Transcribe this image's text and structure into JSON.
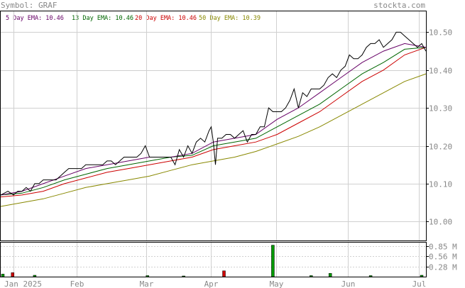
{
  "header": {
    "symbol_text": "Symbol: GRAF",
    "brand": "stockta.com"
  },
  "legend": [
    {
      "label": "5 Day EMA: 10.46",
      "color": "#660066"
    },
    {
      "label": "13 Day EMA: 10.46",
      "color": "#006600"
    },
    {
      "label": "20 Day EMA: 10.46",
      "color": "#cc0000"
    },
    {
      "label": "50 Day EMA: 10.39",
      "color": "#888800"
    }
  ],
  "colors": {
    "price": "#000000",
    "grid": "#d0d0d0",
    "axis_text": "#888888",
    "volume_up": "#009900",
    "volume_down": "#cc0000"
  },
  "chart_data": [
    {
      "type": "line",
      "title": "",
      "ylim": [
        9.95,
        10.555
      ],
      "y_ticks": [
        {
          "value": 10.5,
          "label": "10.50"
        },
        {
          "value": 10.4,
          "label": "10.40"
        },
        {
          "value": 10.3,
          "label": "10.30"
        },
        {
          "value": 10.2,
          "label": "10.20"
        },
        {
          "value": 10.1,
          "label": "10.10"
        },
        {
          "value": 10.0,
          "label": "10.00"
        }
      ],
      "x_ticks": [
        {
          "t": 0.03,
          "label": "Jan 2025"
        },
        {
          "t": 0.178,
          "label": "Feb"
        },
        {
          "t": 0.343,
          "label": "Mar"
        },
        {
          "t": 0.494,
          "label": "Apr"
        },
        {
          "t": 0.648,
          "label": "May"
        },
        {
          "t": 0.817,
          "label": "Jun"
        },
        {
          "t": 0.983,
          "label": "Jul"
        }
      ],
      "series": [
        {
          "name": "Price",
          "key": "price",
          "x": [
            0.0,
            0.017,
            0.03,
            0.04,
            0.05,
            0.06,
            0.07,
            0.08,
            0.09,
            0.1,
            0.11,
            0.12,
            0.13,
            0.14,
            0.15,
            0.16,
            0.17,
            0.18,
            0.19,
            0.2,
            0.21,
            0.22,
            0.23,
            0.24,
            0.25,
            0.26,
            0.27,
            0.28,
            0.29,
            0.3,
            0.31,
            0.32,
            0.33,
            0.34,
            0.35,
            0.36,
            0.37,
            0.38,
            0.39,
            0.4,
            0.41,
            0.42,
            0.43,
            0.44,
            0.45,
            0.46,
            0.47,
            0.48,
            0.49,
            0.495,
            0.5,
            0.505,
            0.51,
            0.52,
            0.53,
            0.54,
            0.55,
            0.56,
            0.57,
            0.58,
            0.59,
            0.6,
            0.61,
            0.62,
            0.63,
            0.64,
            0.65,
            0.66,
            0.67,
            0.68,
            0.69,
            0.7,
            0.71,
            0.72,
            0.73,
            0.74,
            0.75,
            0.76,
            0.77,
            0.78,
            0.79,
            0.8,
            0.81,
            0.82,
            0.83,
            0.84,
            0.85,
            0.86,
            0.87,
            0.88,
            0.89,
            0.9,
            0.91,
            0.92,
            0.93,
            0.94,
            0.95,
            0.96,
            0.97,
            0.98,
            0.99,
            1.0
          ],
          "y": [
            10.07,
            10.08,
            10.07,
            10.08,
            10.08,
            10.09,
            10.08,
            10.1,
            10.1,
            10.11,
            10.11,
            10.11,
            10.11,
            10.12,
            10.13,
            10.14,
            10.14,
            10.14,
            10.14,
            10.15,
            10.15,
            10.15,
            10.15,
            10.15,
            10.16,
            10.16,
            10.15,
            10.16,
            10.17,
            10.17,
            10.17,
            10.17,
            10.18,
            10.2,
            10.17,
            10.17,
            10.17,
            10.17,
            10.17,
            10.17,
            10.15,
            10.19,
            10.17,
            10.2,
            10.18,
            10.21,
            10.22,
            10.21,
            10.24,
            10.25,
            10.21,
            10.15,
            10.22,
            10.22,
            10.23,
            10.23,
            10.22,
            10.23,
            10.24,
            10.21,
            10.23,
            10.23,
            10.25,
            10.25,
            10.3,
            10.29,
            10.29,
            10.29,
            10.3,
            10.32,
            10.35,
            10.3,
            10.34,
            10.33,
            10.35,
            10.35,
            10.35,
            10.36,
            10.38,
            10.39,
            10.38,
            10.4,
            10.41,
            10.44,
            10.43,
            10.43,
            10.44,
            10.46,
            10.47,
            10.47,
            10.48,
            10.46,
            10.47,
            10.48,
            10.5,
            10.5,
            10.49,
            10.48,
            10.47,
            10.46,
            10.47,
            10.45
          ]
        },
        {
          "name": "5 Day EMA",
          "key": "ema5",
          "x": [
            0.0,
            0.05,
            0.1,
            0.15,
            0.2,
            0.25,
            0.3,
            0.35,
            0.4,
            0.45,
            0.5,
            0.55,
            0.6,
            0.65,
            0.7,
            0.75,
            0.8,
            0.85,
            0.9,
            0.95,
            1.0
          ],
          "y": [
            10.07,
            10.08,
            10.1,
            10.12,
            10.14,
            10.15,
            10.16,
            10.17,
            10.17,
            10.18,
            10.21,
            10.22,
            10.23,
            10.27,
            10.3,
            10.34,
            10.38,
            10.42,
            10.45,
            10.47,
            10.46
          ]
        },
        {
          "name": "13 Day EMA",
          "key": "ema13",
          "x": [
            0.0,
            0.05,
            0.1,
            0.15,
            0.2,
            0.25,
            0.3,
            0.35,
            0.4,
            0.45,
            0.5,
            0.55,
            0.6,
            0.65,
            0.7,
            0.75,
            0.8,
            0.85,
            0.9,
            0.95,
            1.0
          ],
          "y": [
            10.07,
            10.075,
            10.09,
            10.11,
            10.125,
            10.14,
            10.15,
            10.16,
            10.17,
            10.175,
            10.2,
            10.21,
            10.22,
            10.25,
            10.28,
            10.31,
            10.35,
            10.39,
            10.42,
            10.455,
            10.46
          ]
        },
        {
          "name": "20 Day EMA",
          "key": "ema20",
          "x": [
            0.0,
            0.05,
            0.1,
            0.15,
            0.2,
            0.25,
            0.3,
            0.35,
            0.4,
            0.45,
            0.5,
            0.55,
            0.6,
            0.65,
            0.7,
            0.75,
            0.8,
            0.85,
            0.9,
            0.95,
            1.0
          ],
          "y": [
            10.065,
            10.07,
            10.08,
            10.1,
            10.115,
            10.13,
            10.14,
            10.15,
            10.16,
            10.17,
            10.19,
            10.2,
            10.21,
            10.23,
            10.26,
            10.29,
            10.33,
            10.37,
            10.4,
            10.44,
            10.46
          ]
        },
        {
          "name": "50 Day EMA",
          "key": "ema50",
          "x": [
            0.0,
            0.05,
            0.1,
            0.15,
            0.2,
            0.25,
            0.3,
            0.35,
            0.4,
            0.45,
            0.5,
            0.55,
            0.6,
            0.65,
            0.7,
            0.75,
            0.8,
            0.85,
            0.9,
            0.95,
            1.0
          ],
          "y": [
            10.04,
            10.05,
            10.06,
            10.075,
            10.09,
            10.1,
            10.11,
            10.12,
            10.135,
            10.15,
            10.16,
            10.17,
            10.185,
            10.205,
            10.225,
            10.25,
            10.28,
            10.31,
            10.34,
            10.37,
            10.39
          ]
        }
      ]
    },
    {
      "type": "bar",
      "title": "",
      "ylim": [
        0,
        0.94
      ],
      "y_ticks": [
        {
          "value": 0.85,
          "label": "0.85 M"
        },
        {
          "value": 0.56,
          "label": "0.56 M"
        },
        {
          "value": 0.28,
          "label": "0.28 M"
        }
      ],
      "bars": [
        {
          "t": 0.005,
          "v": 0.07,
          "up": true
        },
        {
          "t": 0.028,
          "v": 0.11,
          "up": false
        },
        {
          "t": 0.08,
          "v": 0.04,
          "up": true
        },
        {
          "t": 0.345,
          "v": 0.03,
          "up": true
        },
        {
          "t": 0.43,
          "v": 0.02,
          "up": true
        },
        {
          "t": 0.525,
          "v": 0.16,
          "up": false
        },
        {
          "t": 0.64,
          "v": 0.87,
          "up": true
        },
        {
          "t": 0.73,
          "v": 0.03,
          "up": true
        },
        {
          "t": 0.775,
          "v": 0.09,
          "up": true
        },
        {
          "t": 0.87,
          "v": 0.03,
          "up": true
        },
        {
          "t": 0.99,
          "v": 0.04,
          "up": true
        }
      ]
    }
  ]
}
